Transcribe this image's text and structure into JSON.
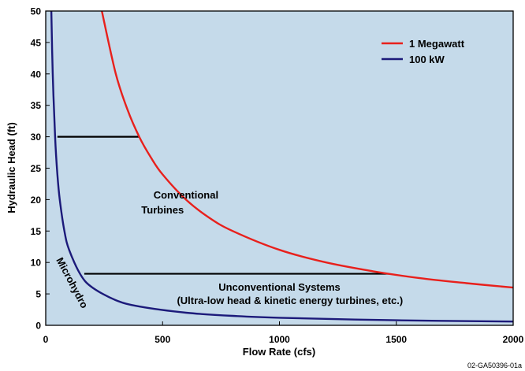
{
  "chart_data": {
    "type": "line",
    "xlabel": "Flow Rate (cfs)",
    "ylabel": "Hydraulic Head (ft)",
    "xlim": [
      0,
      2000
    ],
    "ylim": [
      0,
      50
    ],
    "xticks": [
      0,
      500,
      1000,
      1500,
      2000
    ],
    "yticks": [
      0,
      5,
      10,
      15,
      20,
      25,
      30,
      35,
      40,
      45,
      50
    ],
    "background_color": "#c5daea",
    "grid": false,
    "legend_position": "top-right",
    "series": [
      {
        "name": "1 Megawatt",
        "color": "#e8201c",
        "x": [
          240,
          300,
          350,
          400,
          450,
          500,
          600,
          700,
          800,
          1000,
          1200,
          1400,
          1600,
          1800,
          2000
        ],
        "y": [
          50,
          40,
          34.3,
          30,
          26.7,
          24,
          20,
          17.1,
          15,
          12,
          10,
          8.6,
          7.5,
          6.7,
          6
        ]
      },
      {
        "name": "100 kW",
        "color": "#1c1a7a",
        "x": [
          24,
          30,
          40,
          50,
          60,
          80,
          100,
          150,
          200,
          300,
          400,
          600,
          800,
          1000,
          1500,
          2000
        ],
        "y": [
          50,
          40,
          30,
          24,
          20,
          15,
          12,
          8,
          6,
          4,
          3,
          2,
          1.5,
          1.2,
          0.8,
          0.6
        ]
      }
    ],
    "reference_lines": [
      {
        "y": 30,
        "x_start": 50,
        "x_end": 400,
        "color": "#000000"
      },
      {
        "y": 8.2,
        "x_start": 165,
        "x_end": 1470,
        "color": "#000000"
      }
    ],
    "annotations": [
      {
        "text": "Conventional",
        "x": 600,
        "y": 20.2
      },
      {
        "text": "Turbines",
        "x": 500,
        "y": 17.8
      },
      {
        "text": "Unconventional Systems",
        "x": 1000,
        "y": 5.5
      },
      {
        "text": "(Ultra-low head & kinetic energy turbines, etc.)",
        "x": 1045,
        "y": 3.4
      },
      {
        "text": "Microhydro",
        "x": 100,
        "y": 6.5,
        "rotate": 62
      }
    ]
  },
  "footer_code": "02-GA50396-01a"
}
